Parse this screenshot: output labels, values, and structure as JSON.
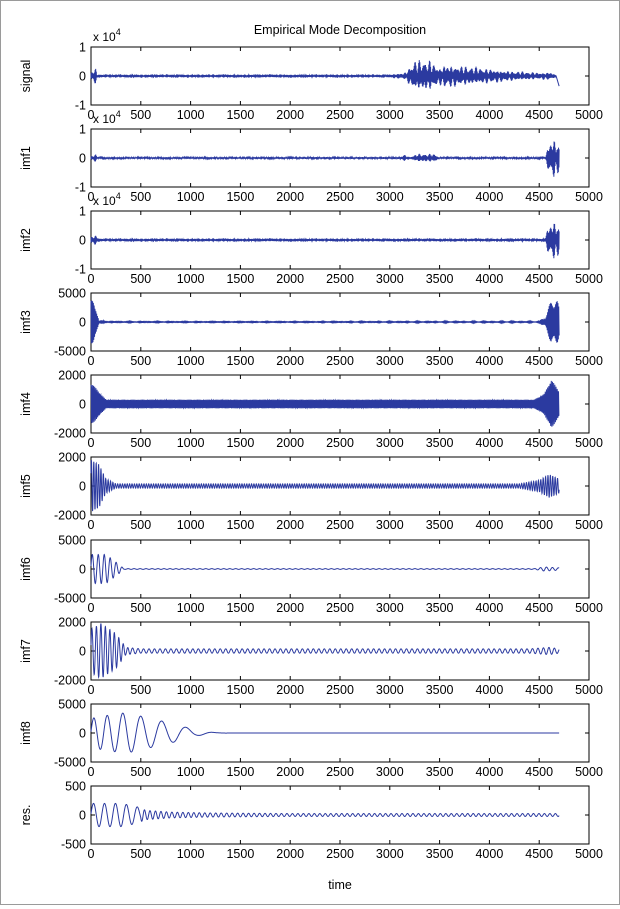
{
  "figure": {
    "title": "Empirical Mode Decomposition",
    "xlabel": "time",
    "line_color": "#2b3aa0"
  },
  "chart_data": [
    {
      "type": "line",
      "ylabel": "signal",
      "multiplier": "x 10",
      "exponent": "4",
      "xlim": [
        0,
        5000
      ],
      "ylim": [
        -1,
        1
      ],
      "x_data_end": 4700,
      "xticks": [
        0,
        500,
        1000,
        1500,
        2000,
        2500,
        3000,
        3500,
        4000,
        4500,
        5000
      ],
      "yticks": [
        -1,
        0,
        1
      ],
      "ytick_labels": [
        "-1",
        "0",
        "1"
      ],
      "envelope": [
        [
          0,
          0.12
        ],
        [
          50,
          0.25
        ],
        [
          60,
          0.05
        ],
        [
          3000,
          0.05
        ],
        [
          3150,
          0.1
        ],
        [
          3250,
          0.45
        ],
        [
          3400,
          0.45
        ],
        [
          3500,
          0.25
        ],
        [
          3550,
          0.35
        ],
        [
          3700,
          0.3
        ],
        [
          3900,
          0.25
        ],
        [
          4200,
          0.15
        ],
        [
          4500,
          0.1
        ],
        [
          4620,
          0.12
        ],
        [
          4650,
          0.05
        ],
        [
          4700,
          0.05
        ]
      ],
      "tail_dip": -0.35
    },
    {
      "type": "line",
      "ylabel": "imf1",
      "multiplier": "x 10",
      "exponent": "4",
      "xlim": [
        0,
        5000
      ],
      "ylim": [
        -1,
        1
      ],
      "x_data_end": 4700,
      "xticks": [
        0,
        500,
        1000,
        1500,
        2000,
        2500,
        3000,
        3500,
        4000,
        4500,
        5000
      ],
      "yticks": [
        -1,
        0,
        1
      ],
      "ytick_labels": [
        "-1",
        "0",
        "1"
      ],
      "envelope": [
        [
          0,
          0.06
        ],
        [
          50,
          0.12
        ],
        [
          60,
          0.02
        ],
        [
          3100,
          0.03
        ],
        [
          3150,
          0.1
        ],
        [
          3200,
          0.03
        ],
        [
          3280,
          0.12
        ],
        [
          3450,
          0.12
        ],
        [
          3500,
          0.02
        ],
        [
          4560,
          0.02
        ],
        [
          4600,
          0.5
        ],
        [
          4650,
          0.6
        ],
        [
          4700,
          0.4
        ]
      ]
    },
    {
      "type": "line",
      "ylabel": "imf2",
      "multiplier": "x 10",
      "exponent": "4",
      "xlim": [
        0,
        5000
      ],
      "ylim": [
        -1,
        1
      ],
      "x_data_end": 4700,
      "xticks": [
        0,
        500,
        1000,
        1500,
        2000,
        2500,
        3000,
        3500,
        4000,
        4500,
        5000
      ],
      "yticks": [
        -1,
        0,
        1
      ],
      "ytick_labels": [
        "-1",
        "0",
        "1"
      ],
      "envelope": [
        [
          0,
          0.12
        ],
        [
          60,
          0.15
        ],
        [
          80,
          0.05
        ],
        [
          4550,
          0.05
        ],
        [
          4600,
          0.5
        ],
        [
          4660,
          0.6
        ],
        [
          4700,
          0.4
        ]
      ]
    },
    {
      "type": "line",
      "ylabel": "imf3",
      "xlim": [
        0,
        5000
      ],
      "ylim": [
        -5000,
        5000
      ],
      "x_data_end": 4700,
      "xticks": [
        0,
        500,
        1000,
        1500,
        2000,
        2500,
        3000,
        3500,
        4000,
        4500,
        5000
      ],
      "yticks": [
        -5000,
        0,
        5000
      ],
      "ytick_labels": [
        "-5000",
        "0",
        "5000"
      ],
      "envelope": [
        [
          0,
          4500
        ],
        [
          50,
          4000
        ],
        [
          80,
          300
        ],
        [
          200,
          100
        ],
        [
          4500,
          100
        ],
        [
          4560,
          1000
        ],
        [
          4620,
          4500
        ],
        [
          4680,
          3500
        ],
        [
          4700,
          2500
        ]
      ]
    },
    {
      "type": "line",
      "ylabel": "imf4",
      "xlim": [
        0,
        5000
      ],
      "ylim": [
        -2000,
        2000
      ],
      "x_data_end": 4700,
      "xticks": [
        0,
        500,
        1000,
        1500,
        2000,
        2500,
        3000,
        3500,
        4000,
        4500,
        5000
      ],
      "yticks": [
        -2000,
        0,
        2000
      ],
      "ytick_labels": [
        "-2000",
        "0",
        "2000"
      ],
      "envelope": [
        [
          0,
          1500
        ],
        [
          60,
          1000
        ],
        [
          150,
          300
        ],
        [
          4450,
          300
        ],
        [
          4550,
          700
        ],
        [
          4620,
          1700
        ],
        [
          4700,
          900
        ]
      ]
    },
    {
      "type": "line",
      "ylabel": "imf5",
      "xlim": [
        0,
        5000
      ],
      "ylim": [
        -2000,
        2000
      ],
      "x_data_end": 4700,
      "xticks": [
        0,
        500,
        1000,
        1500,
        2000,
        2500,
        3000,
        3500,
        4000,
        4500,
        5000
      ],
      "yticks": [
        -2000,
        0,
        2000
      ],
      "ytick_labels": [
        "-2000",
        "0",
        "2000"
      ],
      "envelope": [
        [
          0,
          1800
        ],
        [
          80,
          1500
        ],
        [
          150,
          500
        ],
        [
          250,
          150
        ],
        [
          4300,
          150
        ],
        [
          4500,
          400
        ],
        [
          4600,
          800
        ],
        [
          4700,
          500
        ]
      ]
    },
    {
      "type": "line",
      "ylabel": "imf6",
      "xlim": [
        0,
        5000
      ],
      "ylim": [
        -5000,
        5000
      ],
      "x_data_end": 4700,
      "xticks": [
        0,
        500,
        1000,
        1500,
        2000,
        2500,
        3000,
        3500,
        4000,
        4500,
        5000
      ],
      "yticks": [
        -5000,
        0,
        5000
      ],
      "ytick_labels": [
        "-5000",
        "0",
        "5000"
      ],
      "envelope": [
        [
          0,
          2500
        ],
        [
          150,
          2500
        ],
        [
          280,
          800
        ],
        [
          330,
          60
        ],
        [
          4450,
          60
        ],
        [
          4550,
          350
        ],
        [
          4700,
          200
        ]
      ]
    },
    {
      "type": "line",
      "ylabel": "imf7",
      "xlim": [
        0,
        5000
      ],
      "ylim": [
        -2000,
        2000
      ],
      "x_data_end": 4700,
      "xticks": [
        0,
        500,
        1000,
        1500,
        2000,
        2500,
        3000,
        3500,
        4000,
        4500,
        5000
      ],
      "yticks": [
        -2000,
        0,
        2000
      ],
      "ytick_labels": [
        "-2000",
        "0",
        "2000"
      ],
      "envelope": [
        [
          0,
          1500
        ],
        [
          100,
          1900
        ],
        [
          250,
          1200
        ],
        [
          350,
          250
        ],
        [
          500,
          150
        ],
        [
          4400,
          150
        ],
        [
          4600,
          250
        ],
        [
          4700,
          150
        ]
      ]
    },
    {
      "type": "line",
      "ylabel": "imf8",
      "xlim": [
        0,
        5000
      ],
      "ylim": [
        -5000,
        5000
      ],
      "x_data_end": 4700,
      "xticks": [
        0,
        500,
        1000,
        1500,
        2000,
        2500,
        3000,
        3500,
        4000,
        4500,
        5000
      ],
      "yticks": [
        -5000,
        0,
        5000
      ],
      "ytick_labels": [
        "-5000",
        "0",
        "5000"
      ],
      "envelope": [
        [
          0,
          2500
        ],
        [
          150,
          3000
        ],
        [
          350,
          3500
        ],
        [
          600,
          2500
        ],
        [
          850,
          1500
        ],
        [
          1050,
          500
        ],
        [
          1250,
          60
        ],
        [
          1400,
          0
        ],
        [
          4700,
          0
        ]
      ]
    },
    {
      "type": "line",
      "ylabel": "res.",
      "xlim": [
        0,
        5000
      ],
      "ylim": [
        -500,
        500
      ],
      "x_data_end": 4700,
      "xticks": [
        0,
        500,
        1000,
        1500,
        2000,
        2500,
        3000,
        3500,
        4000,
        4500,
        5000
      ],
      "yticks": [
        -500,
        0,
        500
      ],
      "ytick_labels": [
        "-500",
        "0",
        "500"
      ],
      "envelope": [
        [
          0,
          200
        ],
        [
          100,
          200
        ],
        [
          300,
          200
        ],
        [
          450,
          150
        ],
        [
          550,
          80
        ],
        [
          800,
          50
        ],
        [
          1200,
          35
        ],
        [
          2000,
          25
        ],
        [
          4700,
          25
        ]
      ]
    }
  ]
}
